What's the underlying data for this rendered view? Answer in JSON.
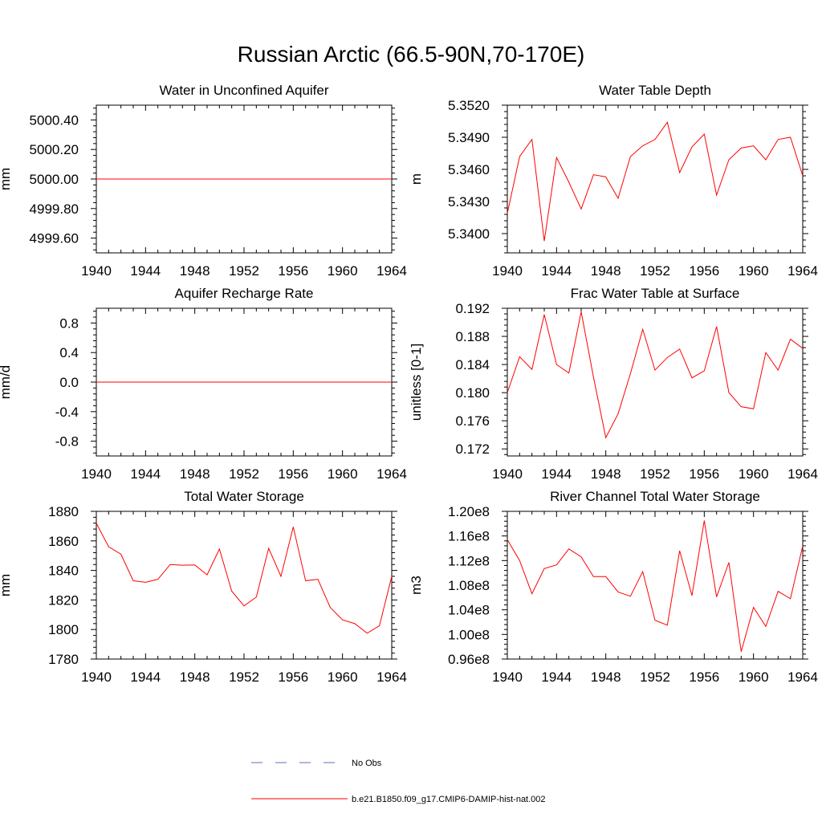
{
  "title": "Russian Arctic (66.5-90N,70-170E)",
  "colors": {
    "model_line": "#ff0000",
    "obs_line": "#5b6fb5",
    "axis": "#000000"
  },
  "legend": [
    {
      "label": "No Obs",
      "style": "dashed",
      "color": "#5b6fb5"
    },
    {
      "label": "b.e21.B1850.f09_g17.CMIP6-DAMIP-hist-nat.002",
      "style": "solid",
      "color": "#ff0000"
    }
  ],
  "chart_data": [
    {
      "type": "line",
      "title": "Water in Unconfined Aquifer",
      "xlabel": "",
      "ylabel": "mm",
      "xlim": [
        1940,
        1964
      ],
      "ylim": [
        4999.5,
        5000.5
      ],
      "x_ticks": [
        1940,
        1944,
        1948,
        1952,
        1956,
        1960,
        1964
      ],
      "x_tick_labels": [
        "1940",
        "1944",
        "1948",
        "1952",
        "1956",
        "1960",
        "1964"
      ],
      "y_ticks": [
        4999.6,
        4999.8,
        5000.0,
        5000.2,
        5000.4
      ],
      "y_tick_labels": [
        "4999.60",
        "4999.80",
        "5000.00",
        "5000.20",
        "5000.40"
      ],
      "x": [
        1940,
        1964
      ],
      "series": [
        {
          "values": [
            5000.0,
            5000.0
          ]
        }
      ]
    },
    {
      "type": "line",
      "title": "Water Table Depth",
      "xlabel": "",
      "ylabel": "m",
      "xlim": [
        1940,
        1964
      ],
      "ylim": [
        5.3382,
        5.352
      ],
      "x_ticks": [
        1940,
        1944,
        1948,
        1952,
        1956,
        1960,
        1964
      ],
      "x_tick_labels": [
        "1940",
        "1944",
        "1948",
        "1952",
        "1956",
        "1960",
        "1964"
      ],
      "y_ticks": [
        5.34,
        5.343,
        5.346,
        5.349,
        5.352
      ],
      "y_tick_labels": [
        "5.3400",
        "5.3430",
        "5.3460",
        "5.3490",
        "5.3520"
      ],
      "x": [
        1940,
        1941,
        1942,
        1943,
        1944,
        1945,
        1946,
        1947,
        1948,
        1949,
        1950,
        1951,
        1952,
        1953,
        1954,
        1955,
        1956,
        1957,
        1958,
        1959,
        1960,
        1961,
        1962,
        1963,
        1964
      ],
      "series": [
        {
          "values": [
            5.3419,
            5.3472,
            5.3488,
            5.3393,
            5.3471,
            5.3448,
            5.3423,
            5.3455,
            5.3453,
            5.3433,
            5.3472,
            5.3482,
            5.3488,
            5.3504,
            5.3457,
            5.3481,
            5.3493,
            5.3436,
            5.3469,
            5.348,
            5.3482,
            5.3469,
            5.3488,
            5.349,
            5.3454
          ]
        }
      ]
    },
    {
      "type": "line",
      "title": "Aquifer Recharge Rate",
      "xlabel": "",
      "ylabel": "mm/d",
      "xlim": [
        1940,
        1964
      ],
      "ylim": [
        -1.0,
        1.0
      ],
      "x_ticks": [
        1940,
        1944,
        1948,
        1952,
        1956,
        1960,
        1964
      ],
      "x_tick_labels": [
        "1940",
        "1944",
        "1948",
        "1952",
        "1956",
        "1960",
        "1964"
      ],
      "y_ticks": [
        -0.8,
        -0.4,
        0.0,
        0.4,
        0.8
      ],
      "y_tick_labels": [
        "-0.8",
        "-0.4",
        "0.0",
        "0.4",
        "0.8"
      ],
      "x": [
        1940,
        1964
      ],
      "series": [
        {
          "values": [
            0.0,
            0.0
          ]
        }
      ]
    },
    {
      "type": "line",
      "title": "Frac Water Table at Surface",
      "xlabel": "",
      "ylabel": "unitless [0-1]",
      "xlim": [
        1940,
        1964
      ],
      "ylim": [
        0.171,
        0.192
      ],
      "x_ticks": [
        1940,
        1944,
        1948,
        1952,
        1956,
        1960,
        1964
      ],
      "x_tick_labels": [
        "1940",
        "1944",
        "1948",
        "1952",
        "1956",
        "1960",
        "1964"
      ],
      "y_ticks": [
        0.172,
        0.176,
        0.18,
        0.184,
        0.188,
        0.192
      ],
      "y_tick_labels": [
        "0.172",
        "0.176",
        "0.180",
        "0.184",
        "0.188",
        "0.192"
      ],
      "x": [
        1940,
        1941,
        1942,
        1943,
        1944,
        1945,
        1946,
        1947,
        1948,
        1949,
        1950,
        1951,
        1952,
        1953,
        1954,
        1955,
        1956,
        1957,
        1958,
        1959,
        1960,
        1961,
        1962,
        1963,
        1964
      ],
      "series": [
        {
          "values": [
            0.18,
            0.1851,
            0.1833,
            0.1911,
            0.184,
            0.1828,
            0.1915,
            0.1822,
            0.1736,
            0.177,
            0.1827,
            0.189,
            0.1832,
            0.185,
            0.1862,
            0.1821,
            0.1831,
            0.1894,
            0.18,
            0.178,
            0.1777,
            0.1857,
            0.1832,
            0.1876,
            0.1863
          ]
        }
      ]
    },
    {
      "type": "line",
      "title": "Total Water Storage",
      "xlabel": "",
      "ylabel": "mm",
      "xlim": [
        1940,
        1964
      ],
      "ylim": [
        1780,
        1880
      ],
      "x_ticks": [
        1940,
        1944,
        1948,
        1952,
        1956,
        1960,
        1964
      ],
      "x_tick_labels": [
        "1940",
        "1944",
        "1948",
        "1952",
        "1956",
        "1960",
        "1964"
      ],
      "y_ticks": [
        1780,
        1800,
        1820,
        1840,
        1860,
        1880
      ],
      "y_tick_labels": [
        "1780",
        "1800",
        "1820",
        "1840",
        "1860",
        "1880"
      ],
      "x": [
        1940,
        1941,
        1942,
        1943,
        1944,
        1945,
        1946,
        1947,
        1948,
        1949,
        1950,
        1951,
        1952,
        1953,
        1954,
        1955,
        1956,
        1957,
        1958,
        1959,
        1960,
        1961,
        1962,
        1963,
        1964
      ],
      "series": [
        {
          "values": [
            1872,
            1856,
            1851,
            1833,
            1832,
            1834,
            1844,
            1843.5,
            1843.7,
            1837,
            1854.5,
            1826,
            1816,
            1822,
            1855,
            1836,
            1869.5,
            1833,
            1834,
            1815,
            1806.5,
            1804,
            1797.5,
            1802.5,
            1836
          ]
        }
      ]
    },
    {
      "type": "line",
      "title": "River Channel Total Water Storage",
      "xlabel": "",
      "ylabel": "m3",
      "xlim": [
        1940,
        1964
      ],
      "ylim": [
        96000000.0,
        120000000.0
      ],
      "x_ticks": [
        1940,
        1944,
        1948,
        1952,
        1956,
        1960,
        1964
      ],
      "x_tick_labels": [
        "1940",
        "1944",
        "1948",
        "1952",
        "1956",
        "1960",
        "1964"
      ],
      "y_ticks": [
        96000000.0,
        100000000.0,
        104000000.0,
        108000000.0,
        112000000.0,
        116000000.0,
        120000000.0
      ],
      "y_tick_labels": [
        "0.96e8",
        "1.00e8",
        "1.04e8",
        "1.08e8",
        "1.12e8",
        "1.16e8",
        "1.20e8"
      ],
      "x": [
        1940,
        1941,
        1942,
        1943,
        1944,
        1945,
        1946,
        1947,
        1948,
        1949,
        1950,
        1951,
        1952,
        1953,
        1954,
        1955,
        1956,
        1957,
        1958,
        1959,
        1960,
        1961,
        1962,
        1963,
        1964
      ],
      "series": [
        {
          "values": [
            115400000.0,
            112000000.0,
            106600000.0,
            110700000.0,
            111300000.0,
            113900000.0,
            112600000.0,
            109400000.0,
            109400000.0,
            106900000.0,
            106200000.0,
            110200000.0,
            102300000.0,
            101500000.0,
            113600000.0,
            106300000.0,
            118500000.0,
            106100000.0,
            111700000.0,
            97200000.0,
            104400000.0,
            101300000.0,
            107000000.0,
            105800000.0,
            114400000.0
          ]
        }
      ]
    }
  ]
}
